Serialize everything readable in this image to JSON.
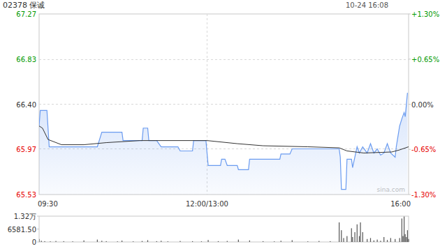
{
  "chart_data": [
    {
      "type": "line",
      "title": "02378 保诚",
      "subtitle": "10-24 16:08",
      "annotations": [
        "sina.com"
      ],
      "xlim": [
        0,
        330
      ],
      "xticks": [
        {
          "value": 0,
          "label": "09:30"
        },
        {
          "value": 150,
          "label": "12:00/13:00"
        },
        {
          "value": 330,
          "label": "16:00"
        }
      ],
      "ylim": [
        65.53,
        67.27
      ],
      "yticks": [
        65.53,
        65.97,
        {
          "value": 66.4,
          "label": "66.40"
        },
        66.83,
        67.27
      ],
      "y2lim": [
        -1.3,
        1.3
      ],
      "y2ticks": [
        {
          "value": -1.3,
          "label": "-1.30%"
        },
        {
          "value": -0.65,
          "label": "-0.65%"
        },
        {
          "value": 0,
          "label": "0.00%"
        },
        {
          "value": 0.65,
          "label": "+0.65%"
        },
        {
          "value": 1.3,
          "label": "+1.30%"
        }
      ],
      "grid": true,
      "series": [
        {
          "color": "#6a9bf0",
          "type": "area",
          "x": [
            0,
            1,
            7,
            9,
            52,
            56,
            74,
            75,
            92,
            93,
            97,
            98,
            105,
            109,
            124,
            126,
            137,
            138,
            149,
            151,
            162,
            163,
            166,
            168,
            177,
            178,
            187,
            188,
            215,
            216,
            224,
            226,
            268,
            269,
            270,
            274,
            275,
            279,
            280,
            282,
            284,
            286,
            289,
            293,
            296,
            299,
            302,
            305,
            308,
            311,
            314,
            318,
            319,
            322,
            324,
            326,
            327,
            329
          ],
          "values": [
            66.19,
            66.34,
            66.34,
            65.99,
            65.99,
            66.13,
            66.13,
            66.05,
            66.05,
            66.17,
            66.17,
            66.05,
            66.05,
            65.99,
            65.99,
            65.95,
            65.95,
            66.05,
            66.05,
            65.81,
            65.81,
            65.87,
            65.87,
            65.81,
            65.81,
            65.77,
            65.77,
            65.87,
            65.87,
            65.92,
            65.92,
            65.97,
            65.97,
            65.89,
            65.58,
            65.58,
            65.87,
            65.87,
            65.79,
            65.89,
            65.99,
            65.93,
            65.99,
            65.93,
            66.02,
            65.93,
            65.97,
            65.91,
            65.93,
            66.02,
            65.93,
            65.89,
            65.99,
            66.19,
            66.26,
            66.32,
            66.28,
            66.51
          ]
        },
        {
          "color": "#333333",
          "type": "line",
          "x": [
            0,
            3,
            8,
            20,
            40,
            60,
            90,
            150,
            177,
            200,
            240,
            268,
            275,
            290,
            315,
            322,
            330
          ],
          "values": [
            66.19,
            66.17,
            66.06,
            66.01,
            66.01,
            66.03,
            66.05,
            66.05,
            66.02,
            66.0,
            65.99,
            65.98,
            65.95,
            65.93,
            65.94,
            65.96,
            65.99
          ]
        }
      ]
    },
    {
      "type": "bar",
      "color": "#555555",
      "tick_labels": "y",
      "grid": false,
      "xlim": [
        0,
        330
      ],
      "ylim": [
        0,
        13200
      ],
      "yticks": [
        0,
        {
          "value": 6581.5,
          "label": "6581.50"
        },
        {
          "value": 13200,
          "label": "1.32万"
        }
      ],
      "x": [
        0,
        2,
        5,
        10,
        15,
        22,
        30,
        40,
        52,
        56,
        60,
        70,
        74,
        84,
        92,
        97,
        105,
        109,
        115,
        126,
        137,
        145,
        151,
        160,
        168,
        178,
        188,
        200,
        210,
        216,
        226,
        240,
        250,
        260,
        268,
        270,
        272,
        275,
        279,
        280,
        282,
        284,
        286,
        287,
        289,
        293,
        296,
        299,
        302,
        305,
        308,
        311,
        314,
        318,
        322,
        324,
        325,
        326,
        327,
        328,
        329,
        330
      ],
      "values": [
        1500,
        600,
        400,
        300,
        500,
        400,
        300,
        800,
        1200,
        600,
        400,
        300,
        700,
        300,
        500,
        900,
        400,
        600,
        300,
        500,
        400,
        300,
        1000,
        400,
        500,
        1200,
        800,
        400,
        300,
        600,
        900,
        300,
        500,
        400,
        10000,
        6000,
        2000,
        3000,
        7000,
        2500,
        5000,
        9000,
        3000,
        10000,
        5000,
        1500,
        2000,
        800,
        1200,
        600,
        2500,
        1000,
        2000,
        1500,
        2000,
        12000,
        3000,
        13000,
        4000,
        2500,
        6000,
        1500
      ]
    }
  ]
}
